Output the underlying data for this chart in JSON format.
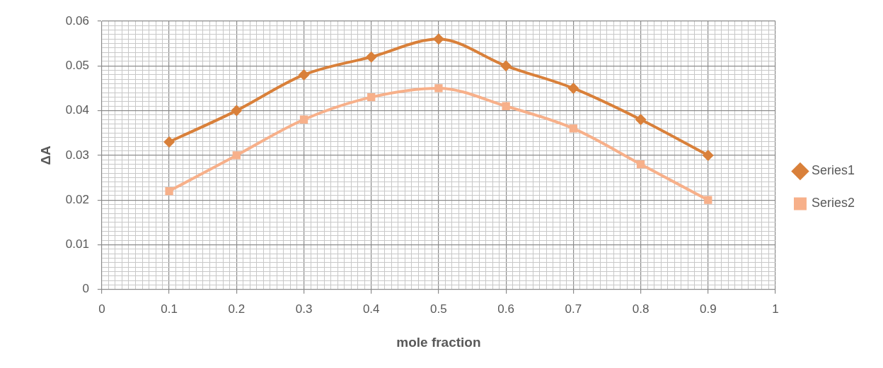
{
  "chart_data": {
    "type": "line",
    "xlabel": "mole fraction",
    "ylabel": "ΔA",
    "x": [
      0.1,
      0.2,
      0.3,
      0.4,
      0.5,
      0.6,
      0.7,
      0.8,
      0.9
    ],
    "series": [
      {
        "name": "Series1",
        "color": "#d9803a",
        "marker": "diamond",
        "values": [
          0.033,
          0.04,
          0.048,
          0.052,
          0.056,
          0.05,
          0.045,
          0.038,
          0.03
        ]
      },
      {
        "name": "Series2",
        "color": "#f7b08a",
        "marker": "square",
        "values": [
          0.022,
          0.03,
          0.038,
          0.043,
          0.045,
          0.041,
          0.036,
          0.028,
          0.02
        ]
      }
    ],
    "xlim": [
      0,
      1
    ],
    "ylim": [
      0,
      0.06
    ],
    "xticks": [
      0,
      {
        "value": 0.01,
        "label": null
      },
      {
        "value": 0.02,
        "label": null
      },
      {
        "value": 0.03,
        "label": null
      },
      {
        "value": 0.04,
        "label": null
      },
      {
        "value": 0.05,
        "label": null
      },
      {
        "value": 0.06,
        "label": null
      },
      {
        "value": 0.07,
        "label": null
      },
      {
        "value": 0.08,
        "label": null
      },
      {
        "value": 0.09,
        "label": null
      },
      0.1,
      {
        "value": 0.11,
        "label": null
      },
      {
        "value": 0.12,
        "label": null
      },
      {
        "value": 0.13,
        "label": null
      },
      {
        "value": 0.14,
        "label": null
      },
      {
        "value": 0.15,
        "label": null
      },
      {
        "value": 0.16,
        "label": null
      },
      {
        "value": 0.17,
        "label": null
      },
      {
        "value": 0.18,
        "label": null
      },
      {
        "value": 0.19,
        "label": null
      },
      0.2,
      {
        "value": 0.21,
        "label": null
      },
      {
        "value": 0.22,
        "label": null
      },
      {
        "value": 0.23,
        "label": null
      },
      {
        "value": 0.24,
        "label": null
      },
      {
        "value": 0.25,
        "label": null
      },
      {
        "value": 0.26,
        "label": null
      },
      {
        "value": 0.27,
        "label": null
      },
      {
        "value": 0.28,
        "label": null
      },
      {
        "value": 0.29,
        "label": null
      },
      0.3,
      {
        "value": 0.31,
        "label": null
      },
      {
        "value": 0.32,
        "label": null
      },
      {
        "value": 0.33,
        "label": null
      },
      {
        "value": 0.34,
        "label": null
      },
      {
        "value": 0.35,
        "label": null
      },
      {
        "value": 0.36,
        "label": null
      },
      {
        "value": 0.37,
        "label": null
      },
      {
        "value": 0.38,
        "label": null
      },
      {
        "value": 0.39,
        "label": null
      },
      0.4,
      {
        "value": 0.41,
        "label": null
      },
      {
        "value": 0.42,
        "label": null
      },
      {
        "value": 0.43,
        "label": null
      },
      {
        "value": 0.44,
        "label": null
      },
      {
        "value": 0.45,
        "label": null
      },
      {
        "value": 0.46,
        "label": null
      },
      {
        "value": 0.47,
        "label": null
      },
      {
        "value": 0.48,
        "label": null
      },
      {
        "value": 0.49,
        "label": null
      },
      0.5,
      {
        "value": 0.51,
        "label": null
      },
      {
        "value": 0.52,
        "label": null
      },
      {
        "value": 0.53,
        "label": null
      },
      {
        "value": 0.54,
        "label": null
      },
      {
        "value": 0.55,
        "label": null
      },
      {
        "value": 0.56,
        "label": null
      },
      {
        "value": 0.57,
        "label": null
      },
      {
        "value": 0.58,
        "label": null
      },
      {
        "value": 0.59,
        "label": null
      },
      0.6,
      {
        "value": 0.61,
        "label": null
      },
      {
        "value": 0.62,
        "label": null
      },
      {
        "value": 0.63,
        "label": null
      },
      {
        "value": 0.64,
        "label": null
      },
      {
        "value": 0.65,
        "label": null
      },
      {
        "value": 0.66,
        "label": null
      },
      {
        "value": 0.67,
        "label": null
      },
      {
        "value": 0.68,
        "label": null
      },
      {
        "value": 0.69,
        "label": null
      },
      0.7,
      {
        "value": 0.71,
        "label": null
      },
      {
        "value": 0.72,
        "label": null
      },
      {
        "value": 0.73,
        "label": null
      },
      {
        "value": 0.74,
        "label": null
      },
      {
        "value": 0.75,
        "label": null
      },
      {
        "value": 0.76,
        "label": null
      },
      {
        "value": 0.77,
        "label": null
      },
      {
        "value": 0.78,
        "label": null
      },
      {
        "value": 0.79,
        "label": null
      },
      0.8,
      {
        "value": 0.81,
        "label": null
      },
      {
        "value": 0.82,
        "label": null
      },
      {
        "value": 0.83,
        "label": null
      },
      {
        "value": 0.84,
        "label": null
      },
      {
        "value": 0.85,
        "label": null
      },
      {
        "value": 0.86,
        "label": null
      },
      {
        "value": 0.87,
        "label": null
      },
      {
        "value": 0.88,
        "label": null
      },
      {
        "value": 0.89,
        "label": null
      },
      0.9,
      {
        "value": 0.91,
        "label": null
      },
      {
        "value": 0.92,
        "label": null
      },
      {
        "value": 0.93,
        "label": null
      },
      {
        "value": 0.94,
        "label": null
      },
      {
        "value": 0.95,
        "label": null
      },
      {
        "value": 0.96,
        "label": null
      },
      {
        "value": 0.97,
        "label": null
      },
      {
        "value": 0.98,
        "label": null
      },
      {
        "value": 0.99,
        "label": null
      },
      1
    ],
    "yticks": [
      0,
      {
        "value": 0.001,
        "label": null
      },
      {
        "value": 0.002,
        "label": null
      },
      {
        "value": 0.003,
        "label": null
      },
      {
        "value": 0.004,
        "label": null
      },
      {
        "value": 0.005,
        "label": null
      },
      {
        "value": 0.006,
        "label": null
      },
      {
        "value": 0.007,
        "label": null
      },
      {
        "value": 0.008,
        "label": null
      },
      {
        "value": 0.009,
        "label": null
      },
      0.01,
      {
        "value": 0.011,
        "label": null
      },
      {
        "value": 0.012,
        "label": null
      },
      {
        "value": 0.013,
        "label": null
      },
      {
        "value": 0.014,
        "label": null
      },
      {
        "value": 0.015,
        "label": null
      },
      {
        "value": 0.016,
        "label": null
      },
      {
        "value": 0.017,
        "label": null
      },
      {
        "value": 0.018,
        "label": null
      },
      {
        "value": 0.019,
        "label": null
      },
      0.02,
      {
        "value": 0.021,
        "label": null
      },
      {
        "value": 0.022,
        "label": null
      },
      {
        "value": 0.023,
        "label": null
      },
      {
        "value": 0.024,
        "label": null
      },
      {
        "value": 0.025,
        "label": null
      },
      {
        "value": 0.026,
        "label": null
      },
      {
        "value": 0.027,
        "label": null
      },
      {
        "value": 0.028,
        "label": null
      },
      {
        "value": 0.029,
        "label": null
      },
      0.03,
      {
        "value": 0.031,
        "label": null
      },
      {
        "value": 0.032,
        "label": null
      },
      {
        "value": 0.033,
        "label": null
      },
      {
        "value": 0.034,
        "label": null
      },
      {
        "value": 0.035,
        "label": null
      },
      {
        "value": 0.036,
        "label": null
      },
      {
        "value": 0.037,
        "label": null
      },
      {
        "value": 0.038,
        "label": null
      },
      {
        "value": 0.039,
        "label": null
      },
      0.04,
      {
        "value": 0.041,
        "label": null
      },
      {
        "value": 0.042,
        "label": null
      },
      {
        "value": 0.043,
        "label": null
      },
      {
        "value": 0.044,
        "label": null
      },
      {
        "value": 0.045,
        "label": null
      },
      {
        "value": 0.046,
        "label": null
      },
      {
        "value": 0.047,
        "label": null
      },
      {
        "value": 0.048,
        "label": null
      },
      {
        "value": 0.049,
        "label": null
      },
      0.05,
      {
        "value": 0.051,
        "label": null
      },
      {
        "value": 0.052,
        "label": null
      },
      {
        "value": 0.053,
        "label": null
      },
      {
        "value": 0.054,
        "label": null
      },
      {
        "value": 0.055,
        "label": null
      },
      {
        "value": 0.056,
        "label": null
      },
      {
        "value": 0.057,
        "label": null
      },
      {
        "value": 0.058,
        "label": null
      },
      {
        "value": 0.059,
        "label": null
      },
      0.06
    ],
    "grid": true,
    "legend": "right",
    "line_style": "solid"
  }
}
